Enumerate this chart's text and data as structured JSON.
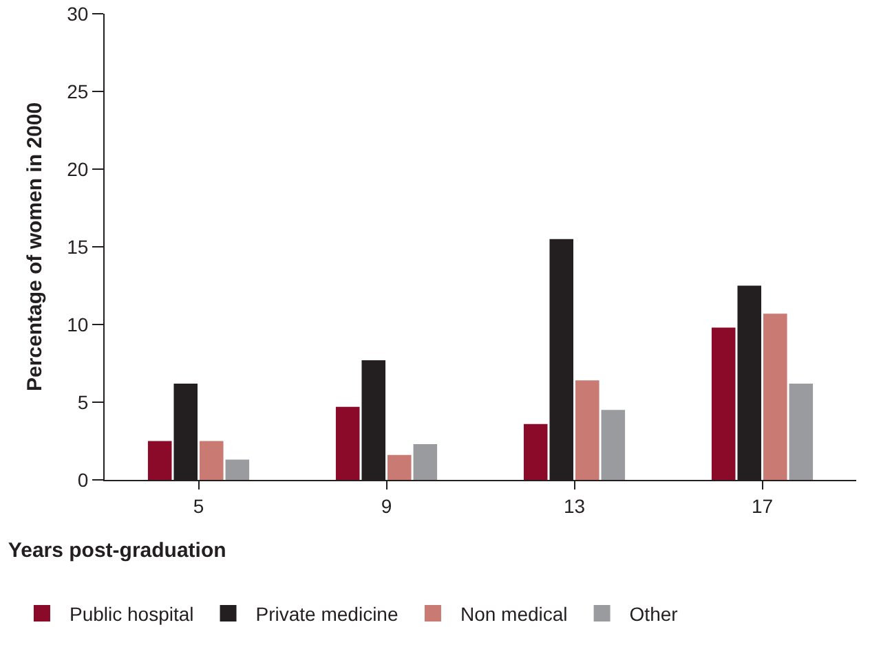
{
  "chart_data": {
    "type": "bar",
    "categories": [
      "5",
      "9",
      "13",
      "17"
    ],
    "series": [
      {
        "name": "Public hospital",
        "color": "#8b0a2a",
        "values": [
          2.5,
          4.7,
          3.6,
          9.8
        ]
      },
      {
        "name": "Private medicine",
        "color": "#231f20",
        "values": [
          6.2,
          7.7,
          15.5,
          12.5
        ]
      },
      {
        "name": "Non medical",
        "color": "#c97a73",
        "values": [
          2.5,
          1.6,
          6.4,
          10.7
        ]
      },
      {
        "name": "Other",
        "color": "#999b9e",
        "values": [
          1.3,
          2.3,
          4.5,
          6.2
        ]
      }
    ],
    "xlabel": "Years post-graduation",
    "ylabel": "Percentage of women in 2000",
    "ylim": [
      0,
      30
    ],
    "yticks": [
      0,
      5,
      10,
      15,
      20,
      25,
      30
    ],
    "grid": false,
    "legend": "bottom"
  }
}
